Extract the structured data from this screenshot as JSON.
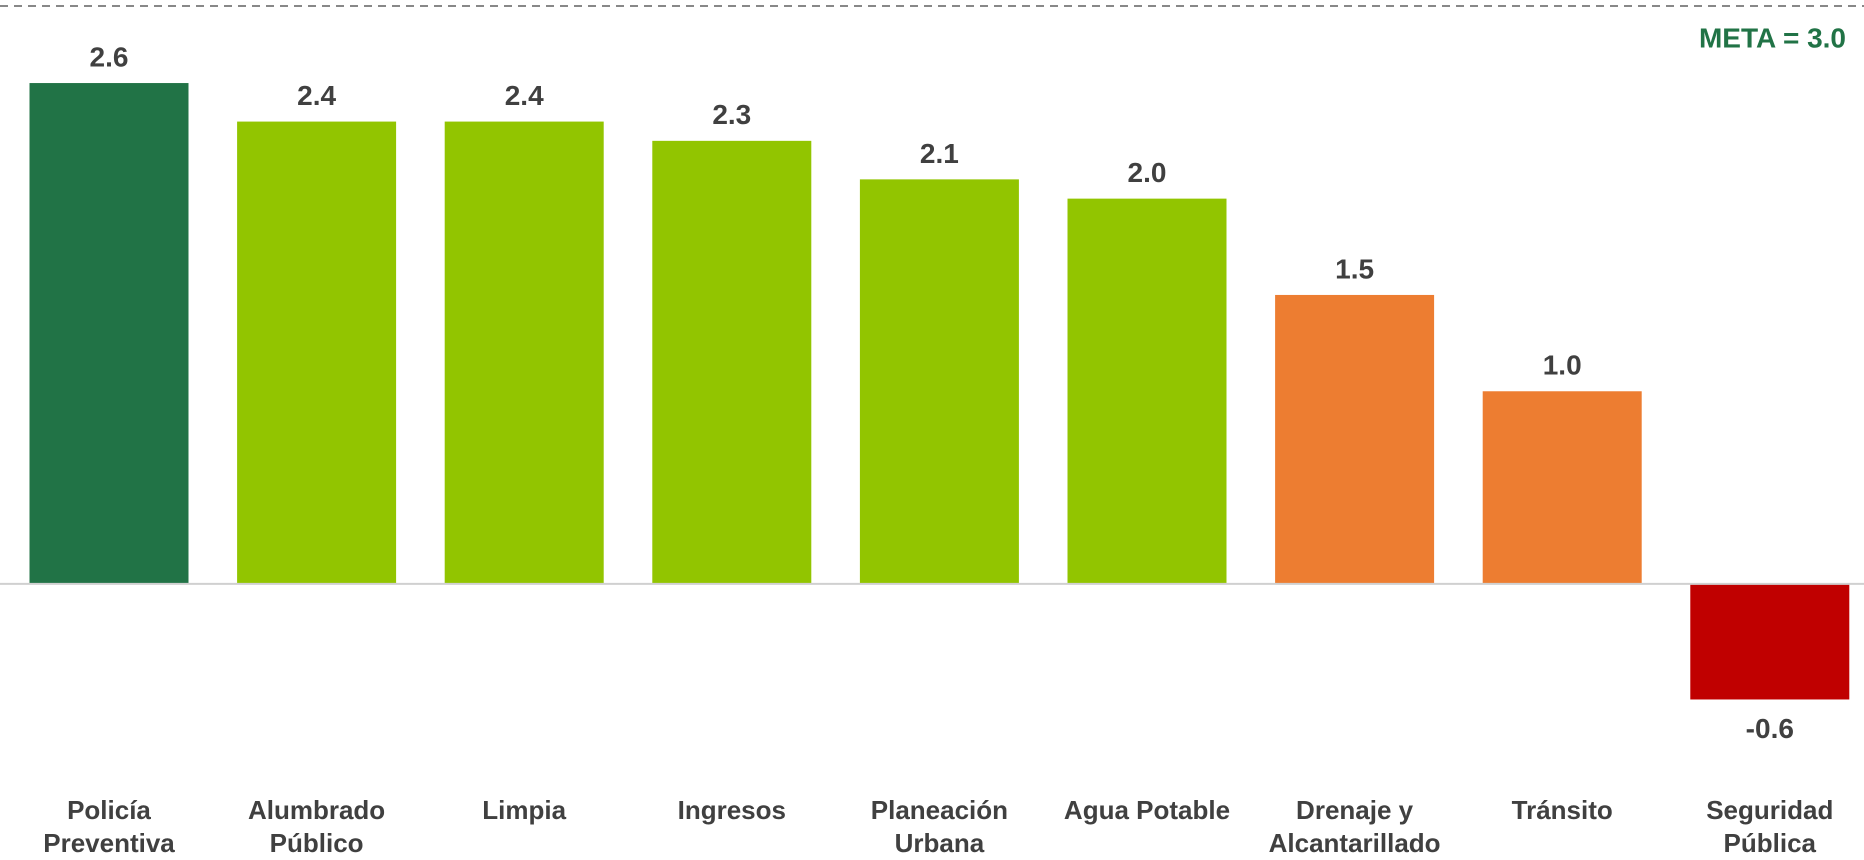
{
  "chart_data": {
    "type": "bar",
    "categories": [
      [
        "Policía",
        "Preventiva"
      ],
      [
        "Alumbrado",
        "Público"
      ],
      [
        "Limpia"
      ],
      [
        "Ingresos"
      ],
      [
        "Planeación",
        "Urbana"
      ],
      [
        "Agua Potable"
      ],
      [
        "Drenaje y",
        "Alcantarillado"
      ],
      [
        "Tránsito"
      ],
      [
        "Seguridad",
        "Pública"
      ]
    ],
    "values": [
      2.6,
      2.4,
      2.4,
      2.3,
      2.1,
      2.0,
      1.5,
      1.0,
      -0.6
    ],
    "value_labels": [
      "2.6",
      "2.4",
      "2.4",
      "2.3",
      "2.1",
      "2.0",
      "1.5",
      "1.0",
      "-0.6"
    ],
    "colors": [
      "#217346",
      "#92c500",
      "#92c500",
      "#92c500",
      "#92c500",
      "#92c500",
      "#ed7d31",
      "#ed7d31",
      "#c00000"
    ],
    "ylim": [
      -0.8,
      3.0
    ],
    "meta": 3.0,
    "annotation": "META = 3.0"
  }
}
